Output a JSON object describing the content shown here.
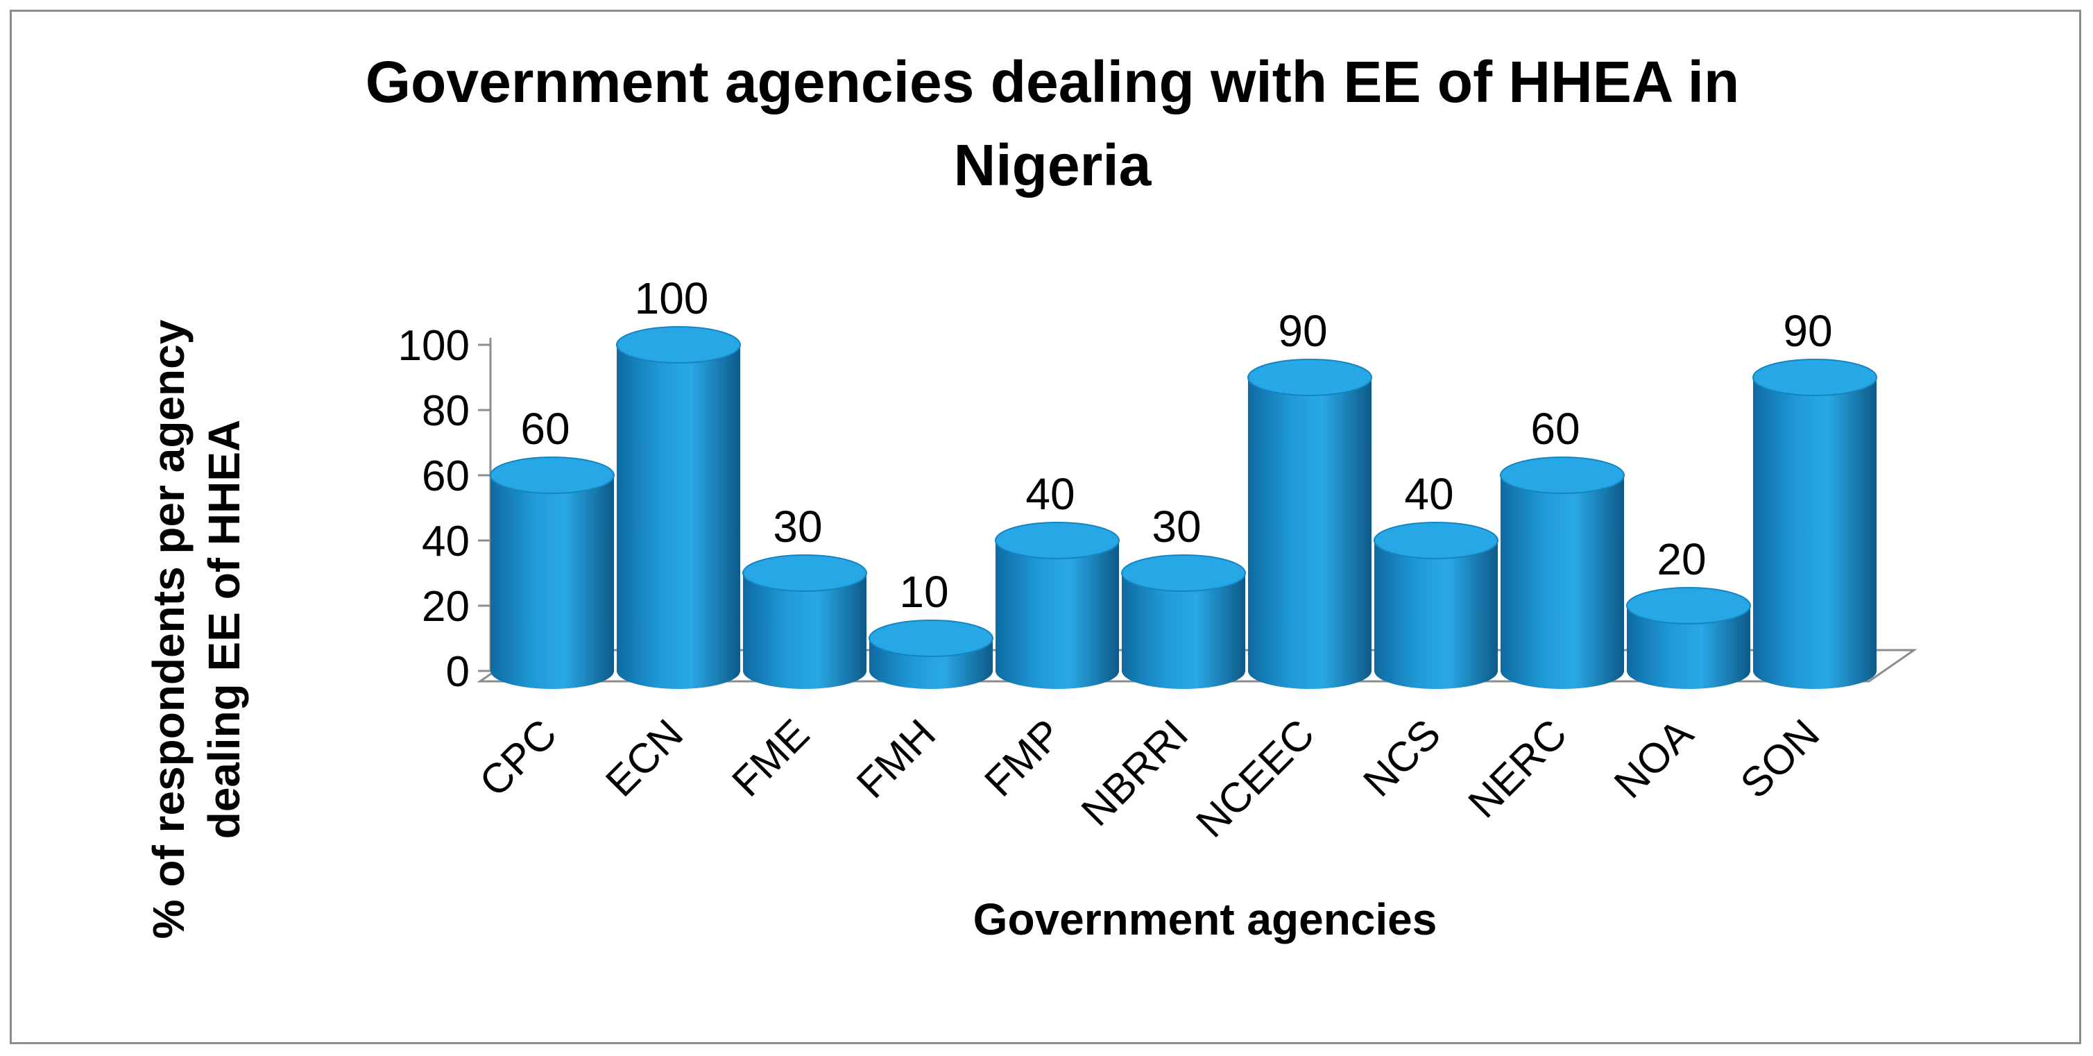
{
  "chart_data": {
    "type": "bar",
    "style": "3d-cylinder",
    "title": "Government agencies dealing with EE of HHEA in Nigeria",
    "title_lines": [
      "Government agencies dealing with EE of HHEA in",
      "Nigeria"
    ],
    "xlabel": "Government agencies",
    "ylabel_lines": [
      "% of respondents per agency",
      "dealing EE of HHEA"
    ],
    "categories": [
      "CPC",
      "ECN",
      "FME",
      "FMH",
      "FMP",
      "NBRRI",
      "NCEEC",
      "NCS",
      "NERC",
      "NOA",
      "SON"
    ],
    "values": [
      60,
      100,
      30,
      10,
      40,
      30,
      90,
      40,
      60,
      20,
      90
    ],
    "data_labels": [
      "60",
      "100",
      "30",
      "10",
      "40",
      "30",
      "90",
      "40",
      "60",
      "20",
      "90"
    ],
    "ylim": [
      0,
      100
    ],
    "yticks": [
      "0",
      "20",
      "40",
      "60",
      "80",
      "100"
    ],
    "grid": false,
    "legend": "none",
    "colors": {
      "bar": "#1f9ad8",
      "bar_dark": "#0f5f8e",
      "bar_top": "#27a7e6",
      "axis": "#8c8c8c"
    }
  }
}
